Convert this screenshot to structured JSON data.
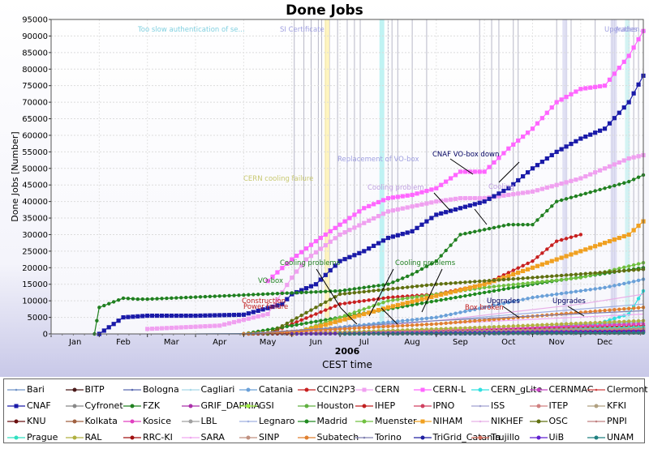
{
  "chart_data": {
    "type": "line",
    "title": "Done Jobs",
    "xlabel": "CEST time",
    "ylabel": "Done Jobs [Number]",
    "year_label": "2006",
    "months": [
      "Jan",
      "Feb",
      "Mar",
      "Apr",
      "May",
      "Jun",
      "Jul",
      "Aug",
      "Sep",
      "Oct",
      "Nov",
      "Dec"
    ],
    "x_domain": [
      0,
      12.3
    ],
    "ylim": [
      0,
      95000
    ],
    "yticks": [
      0,
      5000,
      10000,
      15000,
      20000,
      25000,
      30000,
      35000,
      40000,
      45000,
      50000,
      55000,
      60000,
      65000,
      70000,
      75000,
      80000,
      85000,
      90000,
      95000
    ],
    "grid": true,
    "legend_position": "bottom",
    "series": [
      {
        "name": "Bari",
        "color": "#6f93c8",
        "marker": "line",
        "x": [
          3.0,
          6.0,
          9.0,
          10.0,
          11.0,
          12.3
        ],
        "y": [
          0,
          300,
          1200,
          2000,
          2800,
          3500
        ]
      },
      {
        "name": "BITP",
        "color": "#4a1a1a",
        "marker": "dot",
        "x": [
          4.0,
          8.0,
          12.0,
          12.3
        ],
        "y": [
          0,
          200,
          500,
          600
        ]
      },
      {
        "name": "Bologna",
        "color": "#5a6ab0",
        "marker": "line",
        "x": [
          4.0,
          8.0,
          12.0,
          12.3
        ],
        "y": [
          0,
          300,
          800,
          900
        ]
      },
      {
        "name": "Cagliari",
        "color": "#a8d8e8",
        "marker": "line",
        "x": [
          4.0,
          8.0,
          12.3
        ],
        "y": [
          0,
          200,
          400
        ]
      },
      {
        "name": "Catania",
        "color": "#6aa0d8",
        "marker": "dot",
        "x": [
          4.8,
          6.0,
          8.0,
          9.0,
          10.0,
          11.0,
          11.5,
          12.0,
          12.3
        ],
        "y": [
          0,
          2000,
          5000,
          8000,
          11000,
          13000,
          14000,
          15500,
          16500
        ]
      },
      {
        "name": "CCIN2P3",
        "color": "#c82020",
        "marker": "dot",
        "x": [
          4.5,
          6.0,
          7.0,
          8.0,
          9.0,
          10.0,
          10.5,
          11.0
        ],
        "y": [
          0,
          9000,
          11000,
          12000,
          15000,
          22000,
          28000,
          30000
        ]
      },
      {
        "name": "CERN",
        "color": "#f0a0f0",
        "marker": "square",
        "x": [
          2.0,
          3.5,
          4.5,
          5.0,
          5.3,
          6.0,
          7.0,
          8.0,
          8.5,
          9.0,
          9.5,
          10.0,
          10.5,
          11.0,
          11.5,
          12.0,
          12.3
        ],
        "y": [
          1500,
          2500,
          6000,
          17000,
          22500,
          30000,
          37000,
          40000,
          41000,
          41000,
          42000,
          43000,
          45000,
          47000,
          50000,
          53000,
          54000
        ]
      },
      {
        "name": "CERN-L",
        "color": "#ff66ff",
        "marker": "square",
        "x": [
          4.5,
          5.0,
          5.5,
          6.0,
          6.5,
          7.0,
          7.5,
          8.0,
          8.5,
          9.0,
          9.5,
          10.0,
          10.5,
          11.0,
          11.5,
          12.0,
          12.3
        ],
        "y": [
          16000,
          22500,
          28000,
          33000,
          38000,
          41000,
          42000,
          44000,
          49000,
          49000,
          56000,
          62000,
          70000,
          74000,
          75000,
          84000,
          91500
        ]
      },
      {
        "name": "CERN_gLite",
        "color": "#30e0e0",
        "marker": "dot",
        "x": [
          7.0,
          9.0,
          11.0,
          12.0,
          12.3
        ],
        "y": [
          0,
          500,
          1500,
          6000,
          13000
        ]
      },
      {
        "name": "CERNMAC",
        "color": "#c040c0",
        "marker": "dot",
        "x": [
          6.0,
          9.0,
          12.3
        ],
        "y": [
          0,
          800,
          2500
        ]
      },
      {
        "name": "Clermont",
        "color": "#d04040",
        "marker": "line",
        "x": [
          8.0,
          10.0,
          12.3
        ],
        "y": [
          0,
          1000,
          2500
        ]
      },
      {
        "name": "CNAF",
        "color": "#1a1aa8",
        "marker": "square",
        "x": [
          1.0,
          1.5,
          2.0,
          3.0,
          4.0,
          4.8,
          5.0,
          5.5,
          6.0,
          6.5,
          7.0,
          7.5,
          8.0,
          8.5,
          9.0,
          9.5,
          10.0,
          10.5,
          11.0,
          11.5,
          12.0,
          12.3
        ],
        "y": [
          0,
          5000,
          5500,
          5500,
          5800,
          9000,
          12000,
          15000,
          22000,
          25000,
          29000,
          31000,
          36000,
          38000,
          40000,
          44000,
          50000,
          55000,
          59000,
          62000,
          70000,
          78000
        ]
      },
      {
        "name": "Cyfronet",
        "color": "#888888",
        "marker": "dot",
        "x": [
          5.0,
          8.0,
          12.3
        ],
        "y": [
          0,
          600,
          1500
        ]
      },
      {
        "name": "FZK",
        "color": "#208020",
        "marker": "dot",
        "x": [
          0.9,
          1.0,
          1.5,
          1.8,
          2.0,
          6.0,
          7.0,
          7.5,
          8.0,
          8.5,
          9.0,
          9.5,
          10.0,
          10.5,
          11.0,
          11.5,
          12.0,
          12.3
        ],
        "y": [
          0,
          8000,
          10800,
          10500,
          10500,
          13000,
          15000,
          18000,
          22000,
          30000,
          31500,
          33000,
          33000,
          40000,
          42000,
          44000,
          46000,
          48000
        ]
      },
      {
        "name": "GRIF_DAPNIA",
        "color": "#aa30aa",
        "marker": "dot",
        "x": [
          6.0,
          9.0,
          12.3
        ],
        "y": [
          0,
          400,
          1000
        ]
      },
      {
        "name": "GSI",
        "color": "#a0f040",
        "marker": "dot",
        "x": [
          6.0,
          10.0,
          12.3
        ],
        "y": [
          0,
          300,
          700
        ]
      },
      {
        "name": "Houston",
        "color": "#60b040",
        "marker": "dot",
        "x": [
          4.0,
          8.0,
          12.3
        ],
        "y": [
          0,
          1000,
          2000
        ]
      },
      {
        "name": "IHEP",
        "color": "#c02020",
        "marker": "dot",
        "x": [
          4.0,
          8.0,
          12.3
        ],
        "y": [
          0,
          1000,
          2500
        ]
      },
      {
        "name": "IPNO",
        "color": "#d04060",
        "marker": "dot",
        "x": [
          6.0,
          9.0,
          12.3
        ],
        "y": [
          0,
          500,
          1500
        ]
      },
      {
        "name": "ISS",
        "color": "#a0a0d0",
        "marker": "line",
        "x": [
          6.0,
          10.0,
          12.3
        ],
        "y": [
          0,
          600,
          1500
        ]
      },
      {
        "name": "ITEP",
        "color": "#d08080",
        "marker": "dot",
        "x": [
          5.0,
          9.0,
          12.3
        ],
        "y": [
          0,
          800,
          2000
        ]
      },
      {
        "name": "KFKI",
        "color": "#b0a080",
        "marker": "dot",
        "x": [
          5.0,
          9.0,
          12.3
        ],
        "y": [
          0,
          800,
          1800
        ]
      },
      {
        "name": "KNU",
        "color": "#6a1010",
        "marker": "dot",
        "x": [
          8.0,
          12.3
        ],
        "y": [
          0,
          600
        ]
      },
      {
        "name": "Kolkata",
        "color": "#a06040",
        "marker": "dot",
        "x": [
          6.0,
          12.3
        ],
        "y": [
          0,
          1500
        ]
      },
      {
        "name": "Kosice",
        "color": "#e040c0",
        "marker": "dot",
        "x": [
          5.0,
          9.0,
          12.3
        ],
        "y": [
          0,
          1500,
          3000
        ]
      },
      {
        "name": "LBL",
        "color": "#a0a0a0",
        "marker": "dot",
        "x": [
          6.0,
          12.3
        ],
        "y": [
          0,
          1200
        ]
      },
      {
        "name": "Legnaro",
        "color": "#a0b0e0",
        "marker": "line",
        "x": [
          4.0,
          8.0,
          12.3
        ],
        "y": [
          0,
          4000,
          9000
        ]
      },
      {
        "name": "Madrid",
        "color": "#208a20",
        "marker": "dot",
        "x": [
          4.0,
          6.0,
          8.0,
          10.0,
          12.3
        ],
        "y": [
          0,
          5000,
          10000,
          15000,
          20000
        ]
      },
      {
        "name": "Muenster",
        "color": "#70c040",
        "marker": "dot",
        "x": [
          5.0,
          7.0,
          9.0,
          11.0,
          12.3
        ],
        "y": [
          0,
          10000,
          14000,
          17000,
          21500
        ]
      },
      {
        "name": "NIHAM",
        "color": "#f0a020",
        "marker": "square",
        "x": [
          5.0,
          7.0,
          9.0,
          10.0,
          11.0,
          12.0,
          12.3
        ],
        "y": [
          0,
          8000,
          15000,
          20000,
          25000,
          30000,
          34000
        ]
      },
      {
        "name": "NIKHEF",
        "color": "#e8b0e8",
        "marker": "line",
        "x": [
          5.0,
          8.0,
          11.0,
          12.3
        ],
        "y": [
          0,
          4000,
          9000,
          12000
        ]
      },
      {
        "name": "OSC",
        "color": "#607010",
        "marker": "dot",
        "x": [
          4.5,
          6.0,
          8.0,
          10.0,
          12.3
        ],
        "y": [
          0,
          12000,
          15000,
          17000,
          19500
        ]
      },
      {
        "name": "PNPI",
        "color": "#c08080",
        "marker": "line",
        "x": [
          6.0,
          12.3
        ],
        "y": [
          0,
          2000
        ]
      },
      {
        "name": "Prague",
        "color": "#30e0c0",
        "marker": "dot",
        "x": [
          6.0,
          10.0,
          12.3
        ],
        "y": [
          0,
          1000,
          2000
        ]
      },
      {
        "name": "RAL",
        "color": "#b0b040",
        "marker": "dot",
        "x": [
          5.0,
          9.0,
          12.3
        ],
        "y": [
          0,
          2000,
          4000
        ]
      },
      {
        "name": "RRC-KI",
        "color": "#a01010",
        "marker": "dot",
        "x": [
          6.0,
          12.3
        ],
        "y": [
          0,
          1000
        ]
      },
      {
        "name": "SARA",
        "color": "#f0a8f0",
        "marker": "line",
        "x": [
          4.0,
          8.0,
          12.3
        ],
        "y": [
          0,
          3000,
          6000
        ]
      },
      {
        "name": "SINP",
        "color": "#c09080",
        "marker": "dot",
        "x": [
          5.0,
          12.3
        ],
        "y": [
          0,
          1500
        ]
      },
      {
        "name": "Subatech",
        "color": "#e08030",
        "marker": "dot",
        "x": [
          4.0,
          8.0,
          12.3
        ],
        "y": [
          0,
          3000,
          8000
        ]
      },
      {
        "name": "Torino",
        "color": "#8080b0",
        "marker": "line",
        "x": [
          4.0,
          8.0,
          12.3
        ],
        "y": [
          0,
          4000,
          7000
        ]
      },
      {
        "name": "TriGrid_Catania",
        "color": "#2020a0",
        "marker": "dot",
        "x": [
          8.0,
          12.3
        ],
        "y": [
          0,
          400
        ]
      },
      {
        "name": "Trujillo",
        "color": "#d07060",
        "marker": "dot",
        "x": [
          7.0,
          12.3
        ],
        "y": [
          0,
          400
        ]
      },
      {
        "name": "UiB",
        "color": "#6020d0",
        "marker": "dot",
        "x": [
          5.0,
          12.3
        ],
        "y": [
          0,
          800
        ]
      },
      {
        "name": "UNAM",
        "color": "#208080",
        "marker": "dot",
        "x": [
          6.0,
          12.3
        ],
        "y": [
          0,
          300
        ]
      }
    ],
    "annotations": [
      {
        "text": "Too slow authentication of se...",
        "color": "#80d0e0"
      },
      {
        "text": "SI Certificate",
        "color": "#a0a0e0"
      },
      {
        "text": "CERN cooling failure",
        "color": "#c8c870"
      },
      {
        "text": "CNAF VO-box down",
        "color": "#000060"
      },
      {
        "text": "Replacement of VO-box",
        "color": "#a0a0e0"
      },
      {
        "text": "Cooling problem",
        "color": "#c0a0e0"
      },
      {
        "text": "Cooling problems",
        "color": "#208020"
      },
      {
        "text": "Cooling problems",
        "color": "#208020"
      },
      {
        "text": "VO-box",
        "color": "#208020"
      },
      {
        "text": "Power failure",
        "color": "#c02020"
      },
      {
        "text": "Construction",
        "color": "#c02020"
      },
      {
        "text": "Box broken",
        "color": "#c02020"
      },
      {
        "text": "Upgrades",
        "color": "#000060"
      },
      {
        "text": "Upgrades",
        "color": "#000060"
      },
      {
        "text": "Upgrades",
        "color": "#a0a0e0"
      },
      {
        "text": "Authen...",
        "color": "#a0a0e0"
      },
      {
        "text": "Cooling",
        "color": "#c0a0e0"
      }
    ]
  }
}
